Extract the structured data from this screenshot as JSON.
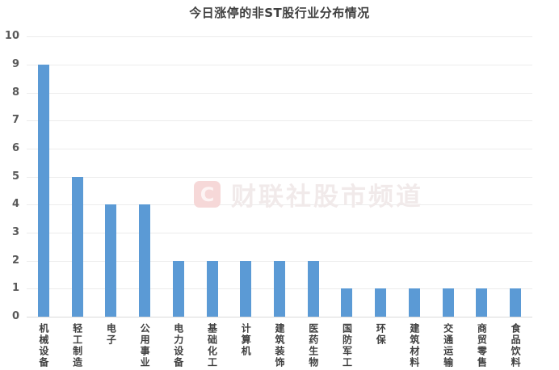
{
  "title": "今日涨停的非ST股行业分布情况",
  "watermark": {
    "logo_letter": "C",
    "text": "财联社股市频道",
    "logo_bg": "#F6D8D8",
    "logo_letter_color": "#FDF4F4",
    "text_color": "#F1EAEA"
  },
  "colors": {
    "bar": "#5B9AD5",
    "grid": "#ECECEC",
    "baseline": "#D9D9D9",
    "y_axis_label": "#595959",
    "category_label": "#404040",
    "title": "#404040",
    "background": "#FFFFFF"
  },
  "y_axis": {
    "ticks": [
      "0",
      "1",
      "2",
      "3",
      "4",
      "5",
      "6",
      "7",
      "8",
      "9",
      "10"
    ]
  },
  "chart_data": {
    "type": "bar",
    "title": "今日涨停的非ST股行业分布情况",
    "categories": [
      "机械设备",
      "轻工制造",
      "电子",
      "公用事业",
      "电力设备",
      "基础化工",
      "计算机",
      "建筑装饰",
      "医药生物",
      "国防军工",
      "环保",
      "建筑材料",
      "交通运输",
      "商贸零售",
      "食品饮料"
    ],
    "values": [
      9,
      5,
      4,
      4,
      2,
      2,
      2,
      2,
      2,
      1,
      1,
      1,
      1,
      1,
      1
    ],
    "xlabel": "",
    "ylabel": "",
    "ylim": [
      0,
      10
    ],
    "ytick_step": 1,
    "grid": "horizontal",
    "legend": "none",
    "bar_color": "#5B9AD5",
    "category_label_orientation": "vertical"
  }
}
